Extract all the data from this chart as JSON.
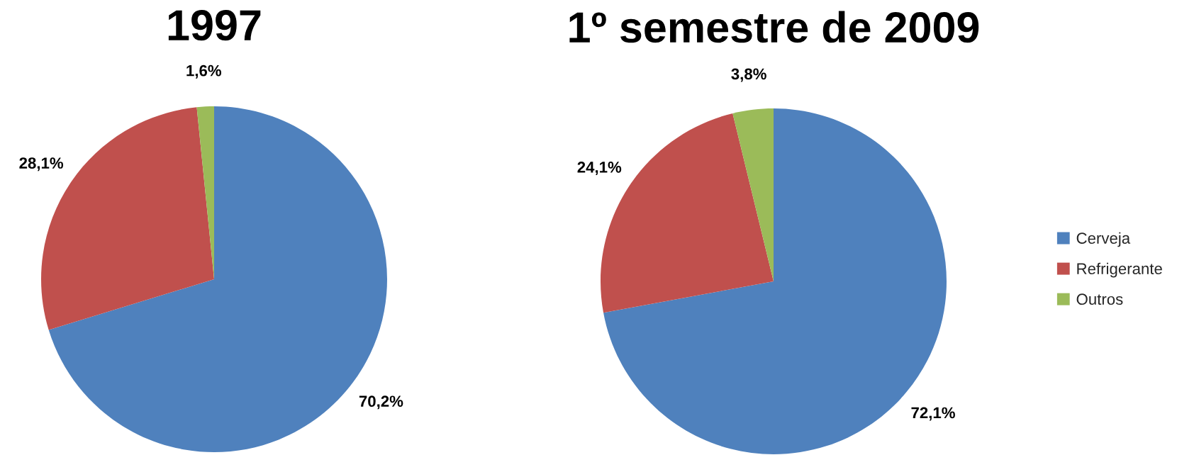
{
  "chart_data": [
    {
      "type": "pie",
      "title": "1997",
      "categories": [
        "Cerveja",
        "Refrigerante",
        "Outros"
      ],
      "values": [
        70.2,
        28.1,
        1.6
      ],
      "colors": [
        "#4f81bd",
        "#c0504d",
        "#9bbb59"
      ],
      "value_labels": [
        "70,2%",
        "28,1%",
        "1,6%"
      ],
      "legend": "right"
    },
    {
      "type": "pie",
      "title": "1º semestre de 2009",
      "categories": [
        null,
        null,
        null
      ],
      "values": [
        72.1,
        24.1,
        3.8
      ],
      "colors": [
        "#4f81bd",
        "#c0504d",
        "#9bbb59"
      ],
      "value_labels": [
        "72,1%",
        "24,1%",
        "3,8%"
      ]
    }
  ]
}
